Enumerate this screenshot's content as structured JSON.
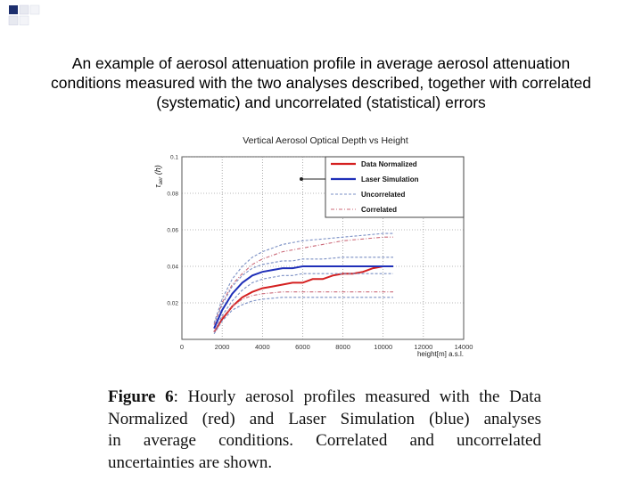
{
  "slide": {
    "title_lines": [
      "An example of aerosol attenuation profile in average aerosol attenuation",
      "conditions measured with the two analyses described, together with correlated",
      "(systematic) and uncorrelated (statistical) errors"
    ]
  },
  "caption": {
    "label": "Figure 6",
    "line1": ": Hourly aerosol profiles measured with the Data",
    "line2": "Normalized (red) and Laser Simulation (blue) analyses",
    "line3": "in average conditions. Correlated and uncorrelated",
    "line4": "uncertainties are shown."
  },
  "colors": {
    "data_normalized": "#d42020",
    "laser_simulation": "#1f2fb8",
    "uncorrelated": "#7a8fc4",
    "correlated": "#cc6b7a",
    "corner_deco": "#1d2f6e"
  },
  "chart_data": {
    "type": "line",
    "title": "Vertical Aerosol Optical Depth vs Height",
    "xlabel": "height[m] a.s.l.",
    "ylabel": "τ_aer(h)",
    "xlim": [
      0,
      14000
    ],
    "ylim": [
      0,
      0.1
    ],
    "x_ticks": [
      {
        "value": 0,
        "label": "0"
      },
      {
        "value": 2000,
        "label": "2000"
      },
      {
        "value": 4000,
        "label": "4000"
      },
      {
        "value": 6000,
        "label": "6000"
      },
      {
        "value": 8000,
        "label": "8000"
      },
      {
        "value": 10000,
        "label": "10000"
      },
      {
        "value": 12000,
        "label": "12000"
      },
      {
        "value": 14000,
        "label": "14000"
      }
    ],
    "y_ticks": [
      {
        "value": 0.02,
        "label": "0.02"
      },
      {
        "value": 0.04,
        "label": "0.04"
      },
      {
        "value": 0.06,
        "label": "0.06"
      },
      {
        "value": 0.08,
        "label": "0.08"
      },
      {
        "value": 0.1,
        "label": "0.1"
      }
    ],
    "grid": true,
    "legend_position": "top-right",
    "series": [
      {
        "name": "Data Normalized",
        "color_key": "data_normalized",
        "style": "solid",
        "x": [
          1600,
          2000,
          2500,
          3000,
          3500,
          4000,
          4500,
          5000,
          5500,
          6000,
          6500,
          7000,
          7500,
          8000,
          8500,
          9000,
          9500,
          10000,
          10500
        ],
        "y": [
          0.004,
          0.011,
          0.018,
          0.023,
          0.026,
          0.028,
          0.029,
          0.03,
          0.031,
          0.031,
          0.033,
          0.033,
          0.035,
          0.036,
          0.036,
          0.037,
          0.039,
          0.04,
          0.04
        ]
      },
      {
        "name": "Laser Simulation",
        "color_key": "laser_simulation",
        "style": "solid",
        "x": [
          1600,
          2000,
          2500,
          3000,
          3500,
          4000,
          4500,
          5000,
          5500,
          6000,
          7000,
          8000,
          9000,
          10000,
          10500
        ],
        "y": [
          0.006,
          0.016,
          0.025,
          0.031,
          0.035,
          0.037,
          0.038,
          0.039,
          0.039,
          0.04,
          0.04,
          0.04,
          0.04,
          0.04,
          0.04
        ]
      },
      {
        "name": "Uncorrelated",
        "color_key": "uncorrelated",
        "style": "dashed",
        "x": [
          1600,
          2000,
          2500,
          3000,
          3500,
          4000,
          4500,
          5000,
          5500,
          6000,
          7000,
          8000,
          9000,
          10000,
          10500
        ],
        "y": [
          0.008,
          0.019,
          0.029,
          0.035,
          0.039,
          0.041,
          0.042,
          0.043,
          0.043,
          0.044,
          0.044,
          0.045,
          0.045,
          0.045,
          0.045
        ]
      },
      {
        "name": "Uncorrelated",
        "color_key": "uncorrelated",
        "style": "dashed",
        "x": [
          1600,
          2000,
          2500,
          3000,
          3500,
          4000,
          4500,
          5000,
          5500,
          6000,
          7000,
          8000,
          9000,
          10000,
          10500
        ],
        "y": [
          0.004,
          0.013,
          0.021,
          0.027,
          0.031,
          0.033,
          0.034,
          0.035,
          0.035,
          0.036,
          0.036,
          0.036,
          0.036,
          0.036,
          0.036
        ]
      },
      {
        "name": "Correlated",
        "color_key": "correlated",
        "style": "dashdot",
        "x": [
          1600,
          2000,
          2500,
          3000,
          3500,
          4000,
          5000,
          6000,
          7000,
          8000,
          9000,
          10000,
          10500
        ],
        "y": [
          0.008,
          0.02,
          0.03,
          0.036,
          0.041,
          0.044,
          0.048,
          0.05,
          0.052,
          0.054,
          0.055,
          0.056,
          0.056
        ]
      },
      {
        "name": "Correlated",
        "color_key": "correlated",
        "style": "dashdot",
        "x": [
          1600,
          2000,
          2500,
          3000,
          3500,
          4000,
          5000,
          6000,
          7000,
          8000,
          9000,
          10000,
          10500
        ],
        "y": [
          0.004,
          0.012,
          0.018,
          0.022,
          0.024,
          0.025,
          0.026,
          0.026,
          0.026,
          0.026,
          0.026,
          0.026,
          0.026
        ]
      },
      {
        "name": "Uncorrelated",
        "color_key": "uncorrelated",
        "style": "dashed",
        "x": [
          1600,
          2000,
          2500,
          3000,
          3500,
          4000,
          5000,
          6000,
          7000,
          8000,
          9000,
          10000,
          10500
        ],
        "y": [
          0.009,
          0.022,
          0.033,
          0.04,
          0.045,
          0.048,
          0.052,
          0.054,
          0.055,
          0.056,
          0.057,
          0.058,
          0.058
        ]
      },
      {
        "name": "Uncorrelated",
        "color_key": "uncorrelated",
        "style": "dashed",
        "x": [
          1600,
          2000,
          2500,
          3000,
          3500,
          4000,
          5000,
          6000,
          7000,
          8000,
          9000,
          10000,
          10500
        ],
        "y": [
          0.003,
          0.01,
          0.016,
          0.019,
          0.021,
          0.022,
          0.023,
          0.023,
          0.023,
          0.023,
          0.023,
          0.023,
          0.023
        ]
      }
    ],
    "legend": [
      {
        "label": "Data Normalized",
        "color_key": "data_normalized",
        "style": "solid"
      },
      {
        "label": "Laser Simulation",
        "color_key": "laser_simulation",
        "style": "solid"
      },
      {
        "label": "Uncorrelated",
        "color_key": "uncorrelated",
        "style": "dashed"
      },
      {
        "label": "Correlated",
        "color_key": "correlated",
        "style": "dashdot"
      }
    ]
  }
}
